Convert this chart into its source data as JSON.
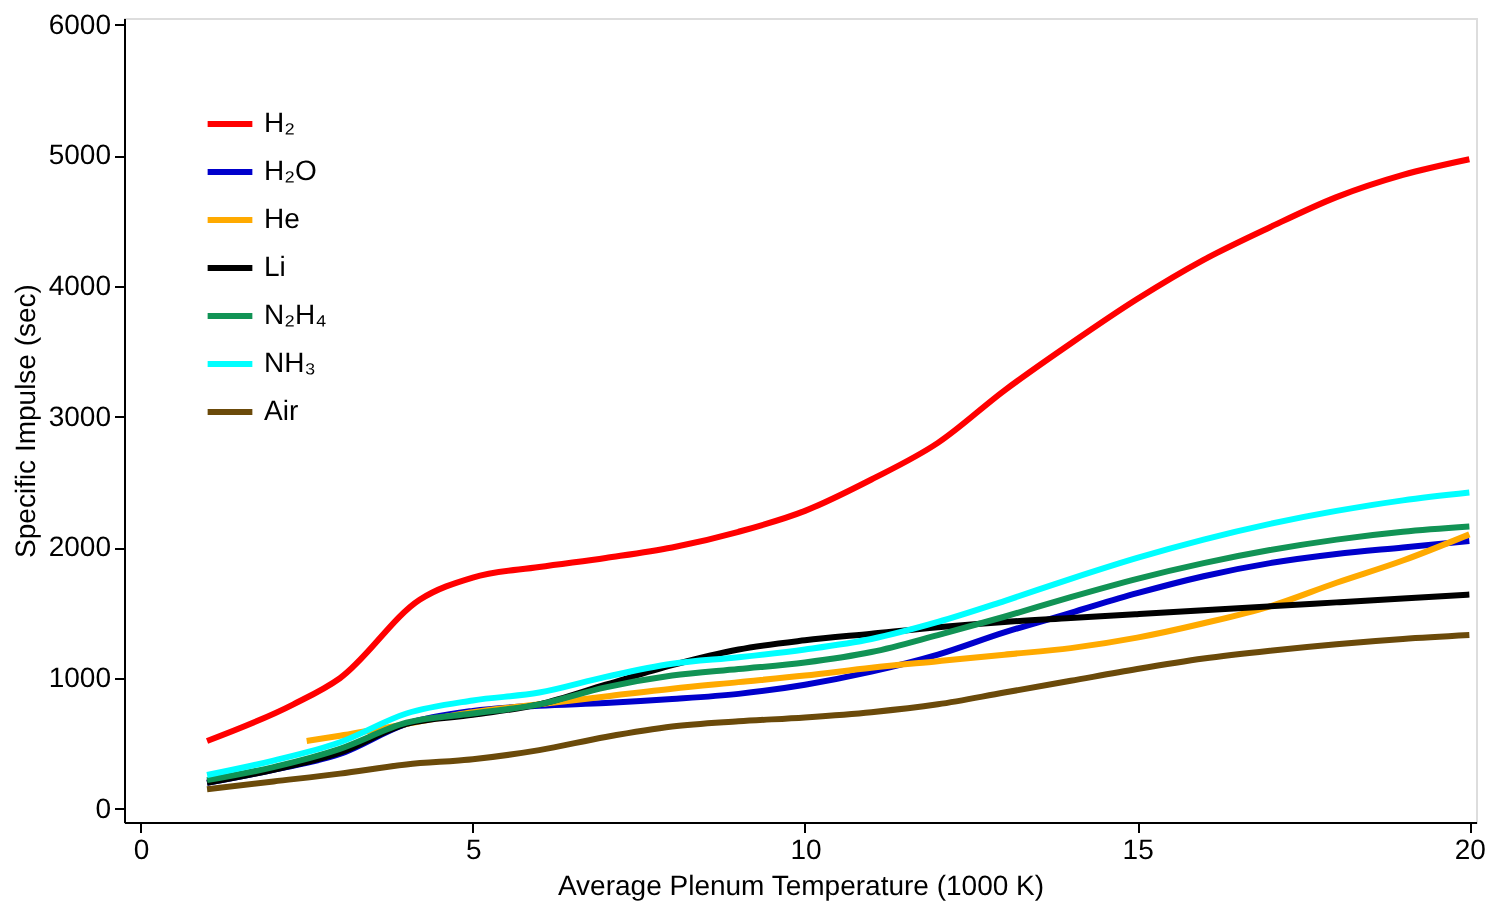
{
  "chart_data": {
    "type": "line",
    "xlabel": "Average Plenum Temperature (1000 K)",
    "ylabel": "Specific Impulse (sec)",
    "xlim": [
      -0.25,
      20.1
    ],
    "xticks": [
      0,
      5,
      10,
      15,
      20
    ],
    "ylim": [
      -100,
      6050
    ],
    "yticks": [
      0,
      1000,
      2000,
      3000,
      4000,
      5000,
      6000
    ],
    "grid": false,
    "legend": "top left",
    "marker": "none",
    "line_style": "solid",
    "series": [
      {
        "name": "H₂",
        "color": "#ff0000",
        "x": [
          1,
          2.3,
          3,
          4.2,
          5,
          6,
          7,
          8,
          9,
          10,
          11,
          12,
          13,
          14,
          15,
          16,
          17,
          18,
          19,
          20
        ],
        "values": [
          520,
          800,
          1000,
          1600,
          1770,
          1850,
          1920,
          2000,
          2120,
          2280,
          2520,
          2800,
          3200,
          3560,
          3900,
          4200,
          4450,
          4680,
          4850,
          4970
        ]
      },
      {
        "name": "H₂O",
        "color": "#0000cc",
        "x": [
          1,
          2,
          3,
          4,
          5,
          6,
          7,
          8,
          9,
          10,
          11,
          12,
          13,
          14,
          15,
          16,
          17,
          18,
          19,
          20
        ],
        "values": [
          200,
          300,
          420,
          650,
          750,
          790,
          810,
          840,
          880,
          950,
          1050,
          1180,
          1350,
          1500,
          1650,
          1780,
          1880,
          1950,
          2000,
          2050
        ]
      },
      {
        "name": "He",
        "color": "#ffaa00",
        "x": [
          2.5,
          3,
          4,
          5,
          6,
          7,
          8,
          9,
          10,
          11,
          12,
          13,
          14,
          15,
          16,
          17,
          18,
          19,
          20
        ],
        "values": [
          520,
          560,
          650,
          740,
          800,
          860,
          920,
          970,
          1020,
          1080,
          1130,
          1180,
          1230,
          1310,
          1420,
          1550,
          1730,
          1900,
          2100
        ]
      },
      {
        "name": "Li",
        "color": "#000000",
        "x": [
          1,
          2,
          3,
          4,
          5,
          6,
          7,
          8,
          9,
          10,
          11,
          12,
          13,
          14,
          15,
          16,
          17,
          18,
          19,
          20
        ],
        "values": [
          200,
          300,
          430,
          650,
          720,
          800,
          950,
          1100,
          1220,
          1290,
          1340,
          1390,
          1430,
          1460,
          1490,
          1520,
          1550,
          1580,
          1610,
          1640
        ]
      },
      {
        "name": "N₂H₄",
        "color": "#119355",
        "x": [
          1,
          2,
          3,
          4,
          5,
          6,
          7,
          8,
          9,
          10,
          11,
          12,
          13,
          14,
          15,
          16,
          17,
          18,
          19,
          20
        ],
        "values": [
          220,
          320,
          460,
          660,
          730,
          800,
          930,
          1020,
          1070,
          1120,
          1200,
          1330,
          1470,
          1620,
          1760,
          1880,
          1980,
          2060,
          2120,
          2160
        ]
      },
      {
        "name": "NH₃",
        "color": "#00ffff",
        "x": [
          1,
          2,
          3,
          4,
          5,
          6,
          7,
          8,
          9,
          10,
          11,
          12,
          13,
          14,
          15,
          16,
          17,
          18,
          19,
          20
        ],
        "values": [
          260,
          370,
          510,
          730,
          830,
          890,
          1010,
          1110,
          1160,
          1220,
          1300,
          1430,
          1590,
          1760,
          1920,
          2060,
          2180,
          2280,
          2360,
          2420
        ]
      },
      {
        "name": "Air",
        "color": "#6b4a0a",
        "x": [
          1,
          2,
          3,
          4,
          5,
          6,
          7,
          8,
          9,
          10,
          11,
          12,
          13,
          14,
          15,
          16,
          17,
          18,
          19,
          20
        ],
        "values": [
          150,
          210,
          270,
          340,
          380,
          450,
          550,
          630,
          670,
          700,
          740,
          800,
          890,
          980,
          1070,
          1150,
          1210,
          1260,
          1300,
          1330
        ]
      }
    ]
  }
}
